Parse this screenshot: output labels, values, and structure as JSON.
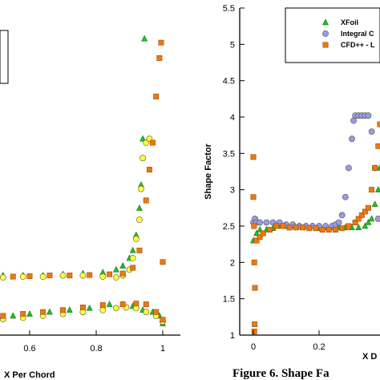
{
  "chart_data": [
    {
      "type": "scatter",
      "title": "",
      "xlabel": "X Per Chord",
      "ylabel": "",
      "xlim": [
        0.45,
        1.05
      ],
      "ylim": [
        0,
        8
      ],
      "x_ticks": [
        "0.6",
        "0.8",
        "1"
      ],
      "grid": false,
      "series": [
        {
          "marker": "triangle",
          "color": "#22bb22",
          "points": [
            [
              0.45,
              1.55
            ],
            [
              0.52,
              1.55
            ],
            [
              0.58,
              1.55
            ],
            [
              0.64,
              1.55
            ],
            [
              0.7,
              1.58
            ],
            [
              0.76,
              1.6
            ],
            [
              0.82,
              1.63
            ],
            [
              0.86,
              1.7
            ],
            [
              0.88,
              1.8
            ],
            [
              0.9,
              2.0
            ],
            [
              0.91,
              2.2
            ],
            [
              0.92,
              2.6
            ],
            [
              0.93,
              3.3
            ],
            [
              0.935,
              3.9
            ],
            [
              0.94,
              5.1
            ],
            [
              0.945,
              7.7
            ],
            [
              0.45,
              0.45
            ],
            [
              0.5,
              0.45
            ],
            [
              0.55,
              0.5
            ],
            [
              0.6,
              0.55
            ],
            [
              0.66,
              0.6
            ],
            [
              0.72,
              0.65
            ],
            [
              0.78,
              0.7
            ],
            [
              0.84,
              0.8
            ],
            [
              0.88,
              0.8
            ],
            [
              0.91,
              0.75
            ],
            [
              0.94,
              0.65
            ],
            [
              0.97,
              0.6
            ],
            [
              0.99,
              0.5
            ],
            [
              1.0,
              0.3
            ]
          ]
        },
        {
          "marker": "circle",
          "color": "#ffff44",
          "points": [
            [
              0.45,
              1.5
            ],
            [
              0.52,
              1.5
            ],
            [
              0.58,
              1.52
            ],
            [
              0.64,
              1.52
            ],
            [
              0.7,
              1.55
            ],
            [
              0.76,
              1.55
            ],
            [
              0.82,
              1.52
            ],
            [
              0.86,
              1.5
            ],
            [
              0.88,
              1.55
            ],
            [
              0.9,
              1.7
            ],
            [
              0.91,
              2.0
            ],
            [
              0.92,
              2.5
            ],
            [
              0.93,
              3.0
            ],
            [
              0.935,
              3.8
            ],
            [
              0.94,
              4.6
            ],
            [
              0.95,
              5.0
            ],
            [
              0.96,
              5.1
            ],
            [
              0.45,
              0.4
            ],
            [
              0.52,
              0.42
            ],
            [
              0.58,
              0.45
            ],
            [
              0.64,
              0.5
            ],
            [
              0.7,
              0.55
            ],
            [
              0.76,
              0.6
            ],
            [
              0.82,
              0.65
            ],
            [
              0.86,
              0.7
            ],
            [
              0.89,
              0.72
            ],
            [
              0.92,
              0.7
            ],
            [
              0.95,
              0.6
            ],
            [
              0.98,
              0.5
            ],
            [
              1.0,
              0.35
            ]
          ]
        },
        {
          "marker": "square",
          "color": "#ee7711",
          "points": [
            [
              0.45,
              1.5
            ],
            [
              0.5,
              1.52
            ],
            [
              0.55,
              1.52
            ],
            [
              0.6,
              1.53
            ],
            [
              0.66,
              1.55
            ],
            [
              0.72,
              1.55
            ],
            [
              0.78,
              1.56
            ],
            [
              0.84,
              1.58
            ],
            [
              0.88,
              1.6
            ],
            [
              0.91,
              1.75
            ],
            [
              0.93,
              2.2
            ],
            [
              0.95,
              3.5
            ],
            [
              0.96,
              4.3
            ],
            [
              0.97,
              5.0
            ],
            [
              0.98,
              6.2
            ],
            [
              0.99,
              7.2
            ],
            [
              0.995,
              7.6
            ],
            [
              1.0,
              1.9
            ],
            [
              0.45,
              0.45
            ],
            [
              0.52,
              0.5
            ],
            [
              0.58,
              0.55
            ],
            [
              0.64,
              0.6
            ],
            [
              0.7,
              0.65
            ],
            [
              0.76,
              0.72
            ],
            [
              0.82,
              0.78
            ],
            [
              0.88,
              0.8
            ],
            [
              0.92,
              0.82
            ],
            [
              0.95,
              0.8
            ],
            [
              0.98,
              0.6
            ],
            [
              1.0,
              0.4
            ]
          ]
        }
      ]
    },
    {
      "type": "scatter",
      "title": "",
      "xlabel": "X D",
      "ylabel": "Shape Factor",
      "xlim": [
        -0.04,
        0.4
      ],
      "ylim": [
        1,
        5.5
      ],
      "x_ticks": [
        "0",
        "0.2"
      ],
      "y_ticks": [
        "1",
        "1.5",
        "2",
        "2.5",
        "3",
        "3.5",
        "4",
        "4.5",
        "5",
        "5.5"
      ],
      "grid": false,
      "legend": {
        "position": "top-right",
        "entries": [
          {
            "label": "XFoil",
            "marker": "triangle",
            "color": "#22bb22"
          },
          {
            "label": "Integral C",
            "marker": "circle",
            "color": "#9999ee"
          },
          {
            "label": "CFD++ - L",
            "marker": "square",
            "color": "#ee7711"
          }
        ]
      },
      "series": [
        {
          "name": "XFoil",
          "marker": "triangle",
          "color": "#22bb22",
          "points": [
            [
              0.0,
              2.3
            ],
            [
              0.01,
              2.4
            ],
            [
              0.02,
              2.45
            ],
            [
              0.04,
              2.45
            ],
            [
              0.06,
              2.47
            ],
            [
              0.08,
              2.5
            ],
            [
              0.1,
              2.5
            ],
            [
              0.12,
              2.5
            ],
            [
              0.14,
              2.5
            ],
            [
              0.16,
              2.5
            ],
            [
              0.18,
              2.5
            ],
            [
              0.2,
              2.47
            ],
            [
              0.22,
              2.48
            ],
            [
              0.24,
              2.48
            ],
            [
              0.26,
              2.48
            ],
            [
              0.28,
              2.48
            ],
            [
              0.3,
              2.48
            ],
            [
              0.32,
              2.48
            ],
            [
              0.34,
              2.5
            ],
            [
              0.35,
              2.55
            ],
            [
              0.36,
              2.6
            ],
            [
              0.37,
              2.8
            ],
            [
              0.38,
              3.0
            ],
            [
              0.385,
              3.3
            ],
            [
              0.39,
              3.6
            ],
            [
              0.395,
              4.0
            ],
            [
              0.4,
              4.25
            ]
          ]
        },
        {
          "name": "Integral C",
          "marker": "circle",
          "color": "#9999ee",
          "points": [
            [
              0.0,
              2.55
            ],
            [
              0.005,
              2.6
            ],
            [
              0.01,
              2.55
            ],
            [
              0.02,
              2.55
            ],
            [
              0.04,
              2.55
            ],
            [
              0.06,
              2.55
            ],
            [
              0.08,
              2.55
            ],
            [
              0.1,
              2.52
            ],
            [
              0.12,
              2.52
            ],
            [
              0.14,
              2.5
            ],
            [
              0.16,
              2.5
            ],
            [
              0.18,
              2.5
            ],
            [
              0.2,
              2.5
            ],
            [
              0.22,
              2.5
            ],
            [
              0.24,
              2.5
            ],
            [
              0.25,
              2.52
            ],
            [
              0.26,
              2.55
            ],
            [
              0.27,
              2.65
            ],
            [
              0.28,
              2.9
            ],
            [
              0.29,
              3.3
            ],
            [
              0.3,
              3.7
            ],
            [
              0.305,
              3.95
            ],
            [
              0.31,
              4.02
            ],
            [
              0.32,
              4.02
            ],
            [
              0.33,
              4.02
            ],
            [
              0.34,
              4.02
            ],
            [
              0.35,
              4.02
            ],
            [
              0.36,
              3.8
            ],
            [
              0.37,
              3.3
            ],
            [
              0.38,
              2.6
            ],
            [
              0.39,
              2.5
            ],
            [
              0.4,
              2.5
            ]
          ]
        },
        {
          "name": "CFD++ - L",
          "marker": "square",
          "color": "#ee7711",
          "points": [
            [
              0.0,
              3.45
            ],
            [
              0.0,
              2.9
            ],
            [
              0.002,
              2.5
            ],
            [
              0.003,
              2.0
            ],
            [
              0.005,
              1.65
            ],
            [
              0.004,
              1.15
            ],
            [
              0.003,
              1.05
            ],
            [
              0.01,
              2.3
            ],
            [
              0.02,
              2.35
            ],
            [
              0.03,
              2.4
            ],
            [
              0.05,
              2.45
            ],
            [
              0.07,
              2.5
            ],
            [
              0.09,
              2.5
            ],
            [
              0.11,
              2.48
            ],
            [
              0.13,
              2.48
            ],
            [
              0.15,
              2.48
            ],
            [
              0.17,
              2.47
            ],
            [
              0.19,
              2.47
            ],
            [
              0.21,
              2.45
            ],
            [
              0.23,
              2.45
            ],
            [
              0.25,
              2.45
            ],
            [
              0.27,
              2.47
            ],
            [
              0.29,
              2.5
            ],
            [
              0.31,
              2.55
            ],
            [
              0.32,
              2.6
            ],
            [
              0.33,
              2.65
            ],
            [
              0.34,
              2.7
            ],
            [
              0.35,
              2.75
            ],
            [
              0.36,
              3.0
            ],
            [
              0.37,
              3.3
            ],
            [
              0.38,
              3.6
            ],
            [
              0.385,
              3.9
            ],
            [
              0.39,
              4.0
            ],
            [
              0.395,
              4.02
            ],
            [
              0.4,
              4.02
            ]
          ]
        }
      ]
    }
  ],
  "caption": "Figure 6.  Shape Fa"
}
